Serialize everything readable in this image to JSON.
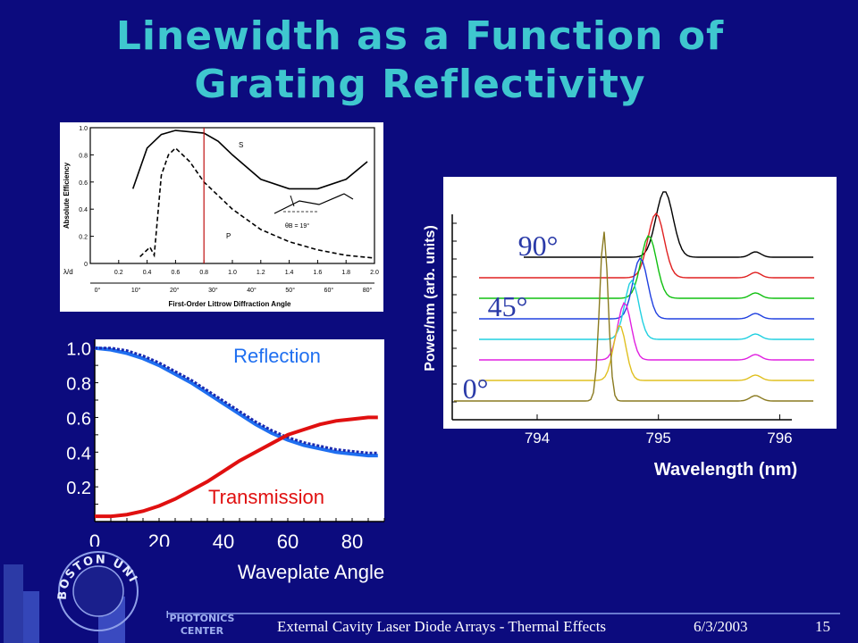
{
  "slide": {
    "title_line1": "Linewidth as a Function of",
    "title_line2": "Grating Reflectivity",
    "footer_center": "External Cavity Laser Diode Arrays - Thermal Effects",
    "footer_date": "6/3/2003",
    "footer_page": "15",
    "logo_text_top": "BOSTON UNIVERSITY",
    "logo_text_photonics": "PHOTONICS",
    "logo_text_center": "CENTER"
  },
  "colors": {
    "background": "#0c0b7e",
    "title": "#3fc7cf",
    "reflection": "#1f6ff0",
    "transmission": "#e01010"
  },
  "chart_data": [
    {
      "type": "line",
      "xlabel": "First-Order Littrow Diffraction Angle",
      "ylabel": "Absolute Efficiency",
      "x_tick_labels": [
        "0.2",
        "0.4",
        "0.6",
        "0.8",
        "1.0",
        "1.2",
        "1.4",
        "1.6",
        "1.8",
        "2.0"
      ],
      "x_row_label": "λ/d",
      "angle_tick_labels": [
        "0°",
        "10°",
        "20°",
        "30°",
        "40°",
        "50°",
        "60°",
        "80°"
      ],
      "y_tick_labels": [
        "0",
        "0.2",
        "0.4",
        "0.6",
        "0.8",
        "1.0"
      ],
      "xlim": [
        0,
        2.0
      ],
      "ylim": [
        0,
        1.0
      ],
      "marker_x": 0.8,
      "annotation": "θB = 19°",
      "series": [
        {
          "name": "S",
          "x": [
            0.3,
            0.4,
            0.5,
            0.6,
            0.7,
            0.8,
            0.9,
            1.0,
            1.2,
            1.4,
            1.6,
            1.8,
            1.95
          ],
          "values": [
            0.55,
            0.85,
            0.95,
            0.98,
            0.97,
            0.96,
            0.9,
            0.8,
            0.62,
            0.55,
            0.55,
            0.62,
            0.75
          ]
        },
        {
          "name": "P",
          "x": [
            0.35,
            0.42,
            0.45,
            0.5,
            0.55,
            0.6,
            0.7,
            0.8,
            1.0,
            1.2,
            1.4,
            1.6,
            1.8,
            2.0
          ],
          "values": [
            0.05,
            0.12,
            0.06,
            0.65,
            0.8,
            0.85,
            0.75,
            0.6,
            0.4,
            0.25,
            0.16,
            0.1,
            0.06,
            0.04
          ]
        }
      ]
    },
    {
      "type": "line",
      "xlabel": "Waveplate Angle",
      "ylabel": "",
      "x_ticks": [
        "0",
        "20",
        "40",
        "60",
        "80"
      ],
      "y_ticks": [
        "1.0",
        "0.8",
        "0.6",
        "0.4",
        "0.2"
      ],
      "xlim": [
        0,
        90
      ],
      "ylim": [
        0.0,
        1.05
      ],
      "series": [
        {
          "name": "Reflection",
          "x": [
            0,
            5,
            10,
            15,
            20,
            25,
            30,
            35,
            40,
            45,
            50,
            55,
            60,
            65,
            70,
            75,
            80,
            85,
            88
          ],
          "values": [
            1.0,
            0.99,
            0.97,
            0.94,
            0.9,
            0.85,
            0.8,
            0.74,
            0.68,
            0.62,
            0.56,
            0.51,
            0.47,
            0.44,
            0.42,
            0.4,
            0.39,
            0.38,
            0.38
          ]
        },
        {
          "name": "Transmission",
          "x": [
            0,
            5,
            10,
            15,
            20,
            25,
            30,
            35,
            40,
            45,
            50,
            55,
            60,
            65,
            70,
            75,
            80,
            85,
            88
          ],
          "values": [
            0.03,
            0.03,
            0.04,
            0.06,
            0.09,
            0.13,
            0.18,
            0.23,
            0.29,
            0.35,
            0.4,
            0.45,
            0.5,
            0.53,
            0.56,
            0.58,
            0.59,
            0.6,
            0.6
          ]
        }
      ]
    },
    {
      "type": "line",
      "xlabel": "Wavelength (nm)",
      "ylabel": "Power/nm (arb. units)",
      "x_ticks": [
        794,
        795,
        796
      ],
      "xlim": [
        793.3,
        796.1
      ],
      "annotations": [
        "90°",
        "45°",
        "0°"
      ],
      "series": [
        {
          "color": "#000000",
          "peak": 795.05
        },
        {
          "color": "#e02020",
          "peak": 794.98
        },
        {
          "color": "#10c010",
          "peak": 794.92
        },
        {
          "color": "#2040e0",
          "peak": 794.85
        },
        {
          "color": "#20d0e0",
          "peak": 794.78
        },
        {
          "color": "#e020e0",
          "peak": 794.72
        },
        {
          "color": "#e0c020",
          "peak": 794.68
        },
        {
          "color": "#8a7a20",
          "peak": 794.55
        }
      ]
    }
  ]
}
